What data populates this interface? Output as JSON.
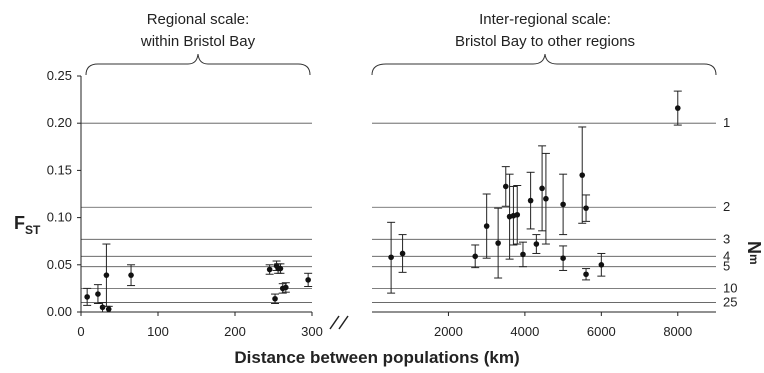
{
  "chart_data": [
    {
      "type": "scatter",
      "panel": "left",
      "heading": [
        "Regional scale:",
        "within Bristol Bay"
      ],
      "ylabel": "FST",
      "xlim": [
        0,
        300
      ],
      "ylim": [
        0,
        0.25
      ],
      "xticks": [
        0,
        100,
        200,
        300
      ],
      "yticks": [
        0.0,
        0.05,
        0.1,
        0.15,
        0.2,
        0.25
      ],
      "points": [
        {
          "x": 8,
          "y": 0.016,
          "lo": 0.007,
          "hi": 0.025
        },
        {
          "x": 22,
          "y": 0.019,
          "lo": 0.009,
          "hi": 0.029
        },
        {
          "x": 28,
          "y": 0.005,
          "lo": 0.0,
          "hi": 0.01
        },
        {
          "x": 33,
          "y": 0.039,
          "lo": 0.006,
          "hi": 0.072
        },
        {
          "x": 36,
          "y": 0.003,
          "lo": 0.0,
          "hi": 0.006
        },
        {
          "x": 65,
          "y": 0.039,
          "lo": 0.028,
          "hi": 0.05
        },
        {
          "x": 245,
          "y": 0.045,
          "lo": 0.04,
          "hi": 0.05
        },
        {
          "x": 252,
          "y": 0.014,
          "lo": 0.009,
          "hi": 0.019
        },
        {
          "x": 254,
          "y": 0.049,
          "lo": 0.044,
          "hi": 0.054
        },
        {
          "x": 256,
          "y": 0.046,
          "lo": 0.041,
          "hi": 0.051
        },
        {
          "x": 259,
          "y": 0.046,
          "lo": 0.041,
          "hi": 0.051
        },
        {
          "x": 262,
          "y": 0.025,
          "lo": 0.02,
          "hi": 0.03
        },
        {
          "x": 266,
          "y": 0.026,
          "lo": 0.021,
          "hi": 0.031
        },
        {
          "x": 295,
          "y": 0.034,
          "lo": 0.027,
          "hi": 0.041
        }
      ]
    },
    {
      "type": "scatter",
      "panel": "right",
      "heading": [
        "Inter-regional scale:",
        "Bristol Bay to other regions"
      ],
      "xlim": [
        0,
        9000
      ],
      "ylim": [
        0,
        0.25
      ],
      "xticks": [
        2000,
        4000,
        6000,
        8000
      ],
      "points": [
        {
          "x": 500,
          "y": 0.058,
          "lo": 0.02,
          "hi": 0.095
        },
        {
          "x": 800,
          "y": 0.062,
          "lo": 0.042,
          "hi": 0.082
        },
        {
          "x": 2700,
          "y": 0.059,
          "lo": 0.047,
          "hi": 0.071
        },
        {
          "x": 3000,
          "y": 0.091,
          "lo": 0.057,
          "hi": 0.125
        },
        {
          "x": 3300,
          "y": 0.073,
          "lo": 0.036,
          "hi": 0.11
        },
        {
          "x": 3500,
          "y": 0.133,
          "lo": 0.112,
          "hi": 0.154
        },
        {
          "x": 3600,
          "y": 0.101,
          "lo": 0.056,
          "hi": 0.146
        },
        {
          "x": 3700,
          "y": 0.102,
          "lo": 0.071,
          "hi": 0.133
        },
        {
          "x": 3800,
          "y": 0.103,
          "lo": 0.072,
          "hi": 0.134
        },
        {
          "x": 3950,
          "y": 0.061,
          "lo": 0.048,
          "hi": 0.074
        },
        {
          "x": 4150,
          "y": 0.118,
          "lo": 0.088,
          "hi": 0.148
        },
        {
          "x": 4300,
          "y": 0.072,
          "lo": 0.062,
          "hi": 0.082
        },
        {
          "x": 4450,
          "y": 0.131,
          "lo": 0.086,
          "hi": 0.176
        },
        {
          "x": 4550,
          "y": 0.12,
          "lo": 0.072,
          "hi": 0.168
        },
        {
          "x": 5000,
          "y": 0.114,
          "lo": 0.082,
          "hi": 0.146
        },
        {
          "x": 5000,
          "y": 0.057,
          "lo": 0.044,
          "hi": 0.07
        },
        {
          "x": 5500,
          "y": 0.145,
          "lo": 0.094,
          "hi": 0.196
        },
        {
          "x": 5600,
          "y": 0.11,
          "lo": 0.096,
          "hi": 0.124
        },
        {
          "x": 5600,
          "y": 0.04,
          "lo": 0.034,
          "hi": 0.046
        },
        {
          "x": 6000,
          "y": 0.05,
          "lo": 0.038,
          "hi": 0.062
        },
        {
          "x": 8000,
          "y": 0.216,
          "lo": 0.198,
          "hi": 0.234
        }
      ]
    }
  ],
  "xlabel": "Distance between populations (km)",
  "right_axis_label": "Nm",
  "nm_lines": [
    {
      "label": "1",
      "fst": 0.2
    },
    {
      "label": "2",
      "fst": 0.111
    },
    {
      "label": "3",
      "fst": 0.077
    },
    {
      "label": "4",
      "fst": 0.059
    },
    {
      "label": "5",
      "fst": 0.048
    },
    {
      "label": "10",
      "fst": 0.025
    },
    {
      "label": "25",
      "fst": 0.01
    }
  ]
}
